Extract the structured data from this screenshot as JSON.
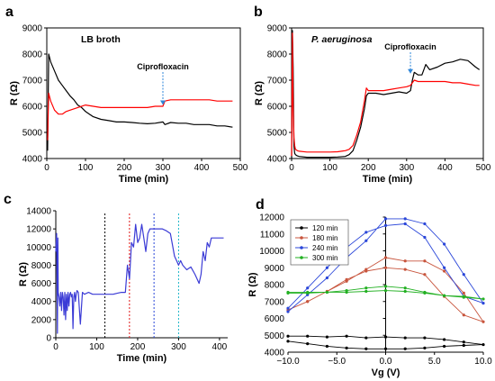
{
  "colors": {
    "black": "#000000",
    "red": "#ff0000",
    "blue": "#3b3bd6",
    "c120": "#000000",
    "c180": "#c8553d",
    "c240": "#2b47d9",
    "c300": "#22b022",
    "arrow": "#2e86d9",
    "vline_black": "#000000",
    "vline_red": "#e01515",
    "vline_blue": "#2b47d9",
    "vline_cyan": "#1bb5c9"
  },
  "chart_data": [
    {
      "panel": "a",
      "type": "line",
      "xlabel": "Time (min)",
      "ylabel": "R (Ω)",
      "xlim": [
        0,
        500
      ],
      "ylim": [
        4000,
        9000
      ],
      "xticks": [
        0,
        100,
        200,
        300,
        400,
        500
      ],
      "yticks": [
        4000,
        5000,
        6000,
        7000,
        8000,
        9000
      ],
      "annotations": [
        {
          "text": "LB broth"
        },
        {
          "text": "Ciprofloxacin",
          "x": 300
        }
      ],
      "series": [
        {
          "color": "black",
          "x": [
            2,
            5,
            10,
            20,
            30,
            40,
            50,
            60,
            70,
            80,
            90,
            100,
            110,
            120,
            140,
            160,
            180,
            200,
            220,
            240,
            260,
            280,
            300,
            305,
            320,
            340,
            360,
            380,
            400,
            420,
            440,
            460,
            480
          ],
          "y": [
            4300,
            8000,
            7700,
            7350,
            7000,
            6800,
            6600,
            6400,
            6250,
            6050,
            5950,
            5800,
            5700,
            5600,
            5500,
            5450,
            5400,
            5400,
            5380,
            5350,
            5330,
            5350,
            5400,
            5300,
            5380,
            5350,
            5350,
            5300,
            5300,
            5300,
            5250,
            5250,
            5200
          ]
        },
        {
          "color": "red",
          "x": [
            2,
            5,
            10,
            20,
            30,
            40,
            50,
            60,
            80,
            100,
            120,
            140,
            160,
            180,
            200,
            220,
            240,
            260,
            280,
            300,
            305,
            320,
            340,
            360,
            380,
            400,
            420,
            440,
            460,
            480
          ],
          "y": [
            4700,
            6500,
            6200,
            5850,
            5700,
            5700,
            5800,
            5850,
            5950,
            6050,
            6000,
            5950,
            5950,
            5950,
            5950,
            5950,
            5950,
            5950,
            6000,
            6000,
            6200,
            6250,
            6250,
            6250,
            6250,
            6250,
            6250,
            6200,
            6200,
            6200
          ]
        }
      ]
    },
    {
      "panel": "b",
      "type": "line",
      "xlabel": "Time (min)",
      "ylabel": "R (Ω)",
      "xlim": [
        0,
        500
      ],
      "ylim": [
        4000,
        9000
      ],
      "xticks": [
        0,
        100,
        200,
        300,
        400,
        500
      ],
      "yticks": [
        4000,
        5000,
        6000,
        7000,
        8000,
        9000
      ],
      "annotations": [
        {
          "text": "P. aeruginosa"
        },
        {
          "text": "Ciprofloxacin",
          "x": 310
        }
      ],
      "series": [
        {
          "color": "black",
          "x": [
            0,
            2,
            4,
            6,
            8,
            10,
            15,
            20,
            40,
            60,
            80,
            100,
            120,
            140,
            150,
            160,
            170,
            180,
            190,
            195,
            200,
            220,
            240,
            260,
            280,
            300,
            310,
            315,
            320,
            330,
            340,
            350,
            360,
            380,
            400,
            420,
            440,
            460,
            480,
            490
          ],
          "y": [
            4000,
            8900,
            7500,
            4500,
            4200,
            4150,
            4100,
            4080,
            4050,
            4050,
            4050,
            4050,
            4060,
            4080,
            4150,
            4300,
            4700,
            5200,
            5900,
            6400,
            6500,
            6500,
            6450,
            6500,
            6550,
            6500,
            6600,
            7000,
            7300,
            7200,
            7200,
            7600,
            7400,
            7500,
            7650,
            7700,
            7800,
            7750,
            7500,
            7400
          ]
        },
        {
          "color": "red",
          "x": [
            0,
            2,
            4,
            6,
            8,
            10,
            15,
            20,
            40,
            60,
            80,
            100,
            120,
            140,
            150,
            160,
            170,
            180,
            190,
            195,
            200,
            220,
            240,
            260,
            280,
            300,
            310,
            315,
            320,
            330,
            340,
            360,
            380,
            400,
            420,
            440,
            460,
            480,
            490
          ],
          "y": [
            4100,
            8800,
            6000,
            4800,
            4500,
            4350,
            4300,
            4280,
            4250,
            4250,
            4250,
            4250,
            4260,
            4300,
            4350,
            4500,
            4900,
            5400,
            6200,
            6700,
            6600,
            6600,
            6600,
            6650,
            6700,
            6750,
            6800,
            6900,
            7000,
            6950,
            6950,
            6950,
            6950,
            6950,
            6900,
            6900,
            6850,
            6800,
            6800
          ]
        }
      ]
    },
    {
      "panel": "c",
      "type": "line",
      "xlabel": "Time (min)",
      "ylabel": "R (Ω)",
      "xlim": [
        0,
        420
      ],
      "ylim": [
        0,
        14000
      ],
      "xticks": [
        0,
        100,
        200,
        300,
        400
      ],
      "yticks": [
        0,
        2000,
        4000,
        6000,
        8000,
        10000,
        12000,
        14000
      ],
      "vlines": [
        {
          "x": 120,
          "color": "vline_black"
        },
        {
          "x": 180,
          "color": "vline_red"
        },
        {
          "x": 240,
          "color": "vline_blue"
        },
        {
          "x": 300,
          "color": "vline_cyan"
        }
      ],
      "series": [
        {
          "color": "blue",
          "x": [
            0,
            2,
            4,
            5,
            6,
            8,
            10,
            12,
            14,
            16,
            18,
            20,
            22,
            24,
            26,
            28,
            30,
            32,
            34,
            36,
            38,
            40,
            42,
            44,
            46,
            48,
            50,
            52,
            55,
            60,
            65,
            70,
            80,
            90,
            100,
            110,
            120,
            130,
            140,
            150,
            160,
            170,
            175,
            180,
            185,
            190,
            195,
            200,
            205,
            210,
            215,
            220,
            225,
            230,
            240,
            250,
            260,
            270,
            280,
            290,
            295,
            300,
            305,
            310,
            320,
            330,
            340,
            345,
            350,
            355,
            360,
            365,
            370,
            375,
            380,
            390,
            400,
            410
          ],
          "y": [
            9500,
            11500,
            500,
            11000,
            5000,
            4500,
            3500,
            5000,
            3000,
            5000,
            4500,
            2500,
            5000,
            2000,
            4800,
            3000,
            5000,
            3500,
            4800,
            5000,
            4500,
            4800,
            1000,
            4500,
            5000,
            4000,
            4800,
            5200,
            5000,
            1500,
            5000,
            4800,
            5000,
            4800,
            4800,
            4800,
            4800,
            4800,
            4800,
            4900,
            5000,
            5000,
            8000,
            6500,
            10500,
            10000,
            12500,
            10500,
            11000,
            12500,
            11000,
            9500,
            11500,
            12000,
            12000,
            12000,
            12000,
            11800,
            11500,
            9000,
            8500,
            8000,
            8500,
            8000,
            7500,
            7800,
            7000,
            6500,
            6000,
            7000,
            9500,
            8500,
            10500,
            10000,
            11000,
            11000,
            11000,
            11000
          ]
        }
      ]
    },
    {
      "panel": "d",
      "type": "line",
      "xlabel": "Vg (V)",
      "ylabel": "R (Ω)",
      "xlim": [
        -10,
        10
      ],
      "ylim": [
        4000,
        12000
      ],
      "xticks": [
        -10.0,
        -5.0,
        0.0,
        5.0,
        10.0
      ],
      "xticklabels": [
        "−10.0",
        "−5.0",
        "0.0",
        "5.0",
        "10.0"
      ],
      "yticks": [
        4000,
        5000,
        6000,
        7000,
        8000,
        9000,
        10000,
        11000,
        12000
      ],
      "legend": {
        "position": "top-left",
        "entries": [
          "120 min",
          "180 min",
          "240 min",
          "300 min"
        ]
      },
      "series": [
        {
          "name": "120 min",
          "color": "c120",
          "x": [
            -10,
            -8,
            -6,
            -4,
            -2,
            0,
            2,
            4,
            6,
            8,
            10,
            8,
            6,
            4,
            2,
            0,
            -2,
            -4,
            -6,
            -8,
            -10
          ],
          "y": [
            4950,
            4950,
            4900,
            4950,
            4850,
            4900,
            4850,
            4850,
            4750,
            4600,
            4450,
            4400,
            4350,
            4250,
            4200,
            4200,
            4200,
            4250,
            4350,
            4500,
            4650
          ]
        },
        {
          "name": "180 min",
          "color": "c180",
          "x": [
            -10,
            -8,
            -6,
            -4,
            -2,
            0,
            2,
            4,
            6,
            8,
            10,
            8,
            6,
            4,
            2,
            0,
            -2,
            -4,
            -6,
            -8,
            -10
          ],
          "y": [
            6500,
            7000,
            7600,
            8200,
            8900,
            9600,
            9400,
            9400,
            8800,
            7500,
            5800,
            6200,
            7300,
            8600,
            8900,
            9000,
            8800,
            8300,
            7600,
            7000,
            6500
          ]
        },
        {
          "name": "240 min",
          "color": "c240",
          "x": [
            -10,
            -8,
            -6,
            -4,
            -2,
            0,
            2,
            4,
            6,
            8,
            10,
            8,
            6,
            4,
            2,
            0,
            -2,
            -4,
            -6,
            -8,
            -10
          ],
          "y": [
            6400,
            7400,
            8400,
            9600,
            10600,
            11900,
            11900,
            11600,
            10400,
            8600,
            6900,
            7300,
            9000,
            10800,
            11600,
            11500,
            11100,
            10200,
            9000,
            7800,
            6600
          ]
        },
        {
          "name": "300 min",
          "color": "c300",
          "x": [
            -10,
            -8,
            -6,
            -4,
            -2,
            0,
            2,
            4,
            6,
            8,
            10,
            8,
            6,
            4,
            2,
            0,
            -2,
            -4,
            -6,
            -8,
            -10
          ],
          "y": [
            7550,
            7550,
            7550,
            7550,
            7600,
            7650,
            7600,
            7500,
            7350,
            7300,
            7150,
            7250,
            7350,
            7550,
            7800,
            7900,
            7800,
            7650,
            7550,
            7500,
            7500
          ]
        }
      ]
    }
  ]
}
